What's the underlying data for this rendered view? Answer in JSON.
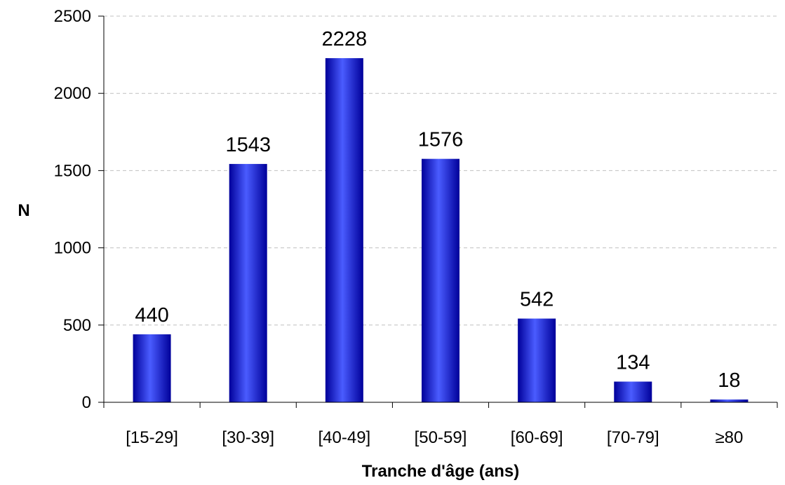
{
  "chart_data": {
    "type": "bar",
    "categories": [
      "[15-29]",
      "[30-39]",
      "[40-49]",
      "[50-59]",
      "[60-69]",
      "[70-79]",
      "≥80"
    ],
    "values": [
      440,
      1543,
      2228,
      1576,
      542,
      134,
      18
    ],
    "value_labels": [
      "440",
      "1543",
      "2228",
      "1576",
      "542",
      "134",
      "18"
    ],
    "title": "",
    "xlabel": "Tranche d'âge (ans)",
    "ylabel": "N",
    "ylim": [
      0,
      2500
    ],
    "yticks": [
      0,
      500,
      1000,
      1500,
      2000,
      2500
    ],
    "ytick_labels": [
      "0",
      "500",
      "1000",
      "1500",
      "2000",
      "2500"
    ],
    "grid": true,
    "legend": false,
    "colors": {
      "bar": "#0000cc",
      "bar_highlight": "#4a5cff",
      "bar_shadow": "#00009a",
      "grid": "#c0c0c0",
      "axis": "#000000"
    }
  }
}
